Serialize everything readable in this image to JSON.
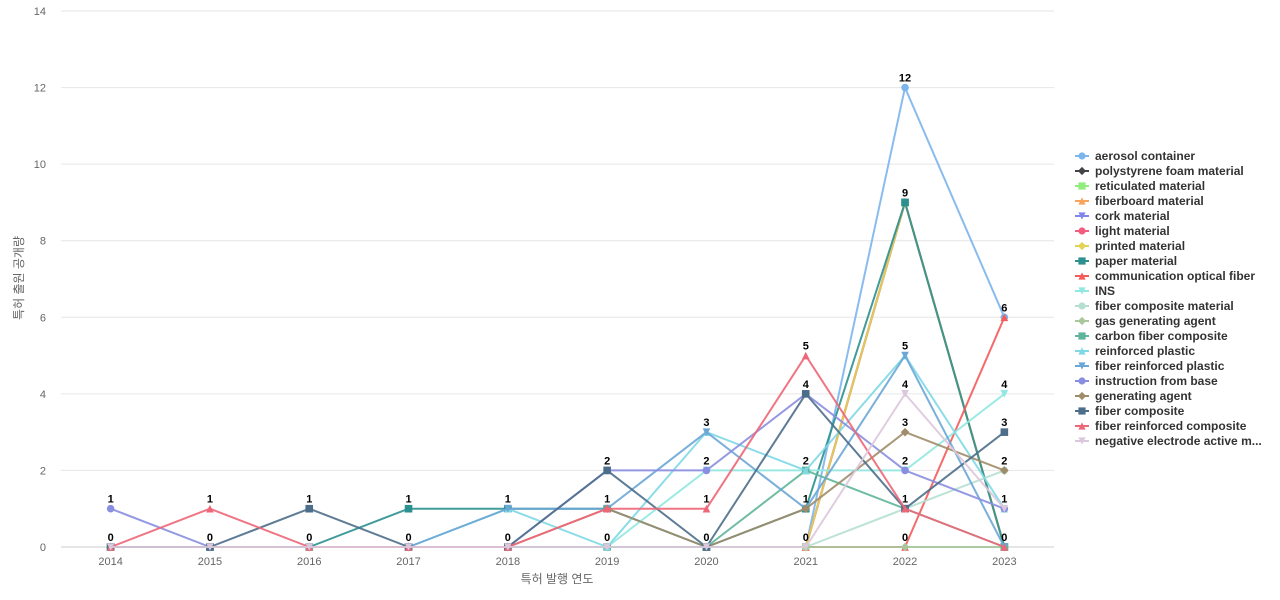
{
  "chart_data": {
    "type": "line",
    "title": "",
    "xlabel": "특허 발행 연도",
    "ylabel": "특허 출원 공개량",
    "ylim": [
      0,
      14
    ],
    "yticks": [
      0,
      2,
      4,
      6,
      8,
      10,
      12,
      14
    ],
    "x": [
      "2014",
      "2015",
      "2016",
      "2017",
      "2018",
      "2019",
      "2020",
      "2021",
      "2022",
      "2023"
    ],
    "grid": true,
    "legend_position": "right",
    "series": [
      {
        "name": "aerosol container",
        "color": "#7cb5ec",
        "marker": "circle",
        "values": [
          0,
          0,
          0,
          0,
          0,
          0,
          0,
          0,
          12,
          6
        ]
      },
      {
        "name": "polystyrene foam material",
        "color": "#434348",
        "marker": "diamond",
        "values": [
          0,
          0,
          0,
          0,
          0,
          0,
          0,
          0,
          9,
          0
        ]
      },
      {
        "name": "reticulated material",
        "color": "#90ed7d",
        "marker": "square",
        "values": [
          0,
          0,
          0,
          0,
          0,
          0,
          0,
          0,
          9,
          0
        ]
      },
      {
        "name": "fiberboard material",
        "color": "#f7a35c",
        "marker": "triangle",
        "values": [
          0,
          0,
          0,
          0,
          0,
          0,
          0,
          0,
          9,
          0
        ]
      },
      {
        "name": "cork material",
        "color": "#8085e9",
        "marker": "triangle-down",
        "values": [
          0,
          0,
          0,
          0,
          0,
          0,
          0,
          0,
          9,
          0
        ]
      },
      {
        "name": "light material",
        "color": "#f15c80",
        "marker": "circle",
        "values": [
          0,
          0,
          0,
          0,
          0,
          0,
          0,
          0,
          9,
          0
        ]
      },
      {
        "name": "printed material",
        "color": "#e4d354",
        "marker": "diamond",
        "values": [
          0,
          0,
          0,
          0,
          0,
          0,
          0,
          0,
          9,
          0
        ]
      },
      {
        "name": "paper material",
        "color": "#2b908f",
        "marker": "square",
        "values": [
          0,
          0,
          0,
          1,
          1,
          1,
          0,
          1,
          9,
          0
        ]
      },
      {
        "name": "communication optical fiber",
        "color": "#f45b5b",
        "marker": "triangle",
        "values": [
          0,
          0,
          0,
          0,
          0,
          0,
          0,
          0,
          0,
          6
        ]
      },
      {
        "name": "INS",
        "color": "#91e8e1",
        "marker": "triangle-down",
        "values": [
          0,
          0,
          0,
          0,
          0,
          0,
          2,
          2,
          2,
          4
        ]
      },
      {
        "name": "fiber composite material",
        "color": "#b5e0d0",
        "marker": "circle",
        "values": [
          0,
          0,
          0,
          0,
          0,
          0,
          0,
          0,
          1,
          2
        ]
      },
      {
        "name": "gas generating agent",
        "color": "#a8c79a",
        "marker": "diamond",
        "values": [
          0,
          0,
          0,
          0,
          0,
          0,
          0,
          0,
          0,
          0
        ]
      },
      {
        "name": "carbon fiber composite",
        "color": "#5fb59b",
        "marker": "square",
        "values": [
          0,
          0,
          0,
          0,
          0,
          0,
          0,
          2,
          1,
          0
        ]
      },
      {
        "name": "reinforced plastic",
        "color": "#80d8e5",
        "marker": "triangle",
        "values": [
          0,
          0,
          0,
          0,
          1,
          0,
          3,
          2,
          5,
          1
        ]
      },
      {
        "name": "fiber reinforced plastic",
        "color": "#6aa6d6",
        "marker": "triangle-down",
        "values": [
          0,
          0,
          0,
          0,
          1,
          1,
          3,
          1,
          5,
          0
        ]
      },
      {
        "name": "instruction from base",
        "color": "#8a8ee0",
        "marker": "circle",
        "values": [
          1,
          0,
          0,
          0,
          0,
          2,
          2,
          4,
          2,
          1
        ]
      },
      {
        "name": "generating agent",
        "color": "#a08c6a",
        "marker": "diamond",
        "values": [
          0,
          0,
          0,
          0,
          0,
          1,
          0,
          1,
          3,
          2
        ]
      },
      {
        "name": "fiber composite",
        "color": "#4d6e8a",
        "marker": "square",
        "values": [
          0,
          0,
          1,
          0,
          0,
          2,
          0,
          4,
          1,
          3
        ]
      },
      {
        "name": "fiber reinforced composite",
        "color": "#ee6677",
        "marker": "triangle",
        "values": [
          0,
          1,
          0,
          0,
          0,
          1,
          1,
          5,
          1,
          0
        ]
      },
      {
        "name": "negative electrode active m...",
        "color": "#dbc8dc",
        "marker": "triangle-down",
        "values": [
          0,
          0,
          0,
          0,
          0,
          0,
          0,
          0,
          4,
          1
        ]
      }
    ],
    "data_labels": [
      {
        "x": "2014",
        "text": "1",
        "value": 1
      },
      {
        "x": "2014",
        "text": "0",
        "value": 0
      },
      {
        "x": "2015",
        "text": "1",
        "value": 1
      },
      {
        "x": "2015",
        "text": "0",
        "value": 0
      },
      {
        "x": "2016",
        "text": "1",
        "value": 1
      },
      {
        "x": "2016",
        "text": "0",
        "value": 0
      },
      {
        "x": "2017",
        "text": "1",
        "value": 1
      },
      {
        "x": "2017",
        "text": "0",
        "value": 0
      },
      {
        "x": "2018",
        "text": "1",
        "value": 1
      },
      {
        "x": "2018",
        "text": "0",
        "value": 0
      },
      {
        "x": "2019",
        "text": "2",
        "value": 2
      },
      {
        "x": "2019",
        "text": "1",
        "value": 1
      },
      {
        "x": "2019",
        "text": "0",
        "value": 0
      },
      {
        "x": "2020",
        "text": "3",
        "value": 3
      },
      {
        "x": "2020",
        "text": "2",
        "value": 2
      },
      {
        "x": "2020",
        "text": "1",
        "value": 1
      },
      {
        "x": "2020",
        "text": "0",
        "value": 0
      },
      {
        "x": "2021",
        "text": "5",
        "value": 5
      },
      {
        "x": "2021",
        "text": "4",
        "value": 4
      },
      {
        "x": "2021",
        "text": "2",
        "value": 2
      },
      {
        "x": "2021",
        "text": "1",
        "value": 1
      },
      {
        "x": "2021",
        "text": "0",
        "value": 0
      },
      {
        "x": "2022",
        "text": "12",
        "value": 12
      },
      {
        "x": "2022",
        "text": "9",
        "value": 9
      },
      {
        "x": "2022",
        "text": "5",
        "value": 5
      },
      {
        "x": "2022",
        "text": "4",
        "value": 4
      },
      {
        "x": "2022",
        "text": "3",
        "value": 3
      },
      {
        "x": "2022",
        "text": "2",
        "value": 2
      },
      {
        "x": "2022",
        "text": "1",
        "value": 1
      },
      {
        "x": "2022",
        "text": "0",
        "value": 0
      },
      {
        "x": "2023",
        "text": "6",
        "value": 6
      },
      {
        "x": "2023",
        "text": "4",
        "value": 4
      },
      {
        "x": "2023",
        "text": "3",
        "value": 3
      },
      {
        "x": "2023",
        "text": "2",
        "value": 2
      },
      {
        "x": "2023",
        "text": "1",
        "value": 1
      },
      {
        "x": "2023",
        "text": "0",
        "value": 0
      }
    ]
  }
}
